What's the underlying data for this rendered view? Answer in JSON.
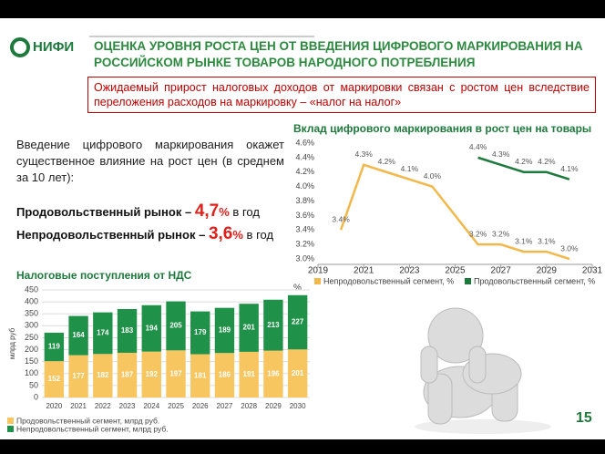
{
  "header": {
    "logo": "НИФИ",
    "title": "ОЦЕНКА УРОВНЯ РОСТА ЦЕН ОТ ВВЕДЕНИЯ ЦИФРОВОГО МАРКИРОВАНИЯ НА РОССИЙСКОМ РЫНКЕ ТОВАРОВ НАРОДНОГО ПОТРЕБЛЕНИЯ"
  },
  "callout": "Ожидаемый прирост налоговых доходов от маркировки связан с ростом цен вследствие переложения расходов на маркировку – «налог на налог»",
  "intro": "Введение цифрового маркирования окажет существенное влияние на рост цен (в среднем за 10 лет):",
  "market_growth": [
    {
      "label": "Продовольственный рынок –",
      "value": "4,7",
      "unit": "%",
      "suffix": "в год"
    },
    {
      "label": "Непродовольственный рынок –",
      "value": "3,6",
      "unit": "%",
      "suffix": "в год"
    }
  ],
  "page_number": "15",
  "chart_data": [
    {
      "type": "line",
      "title": "Вклад цифрового маркирования в рост цен на товары",
      "xlim": [
        2019,
        2031
      ],
      "xticks": [
        2019,
        2021,
        2023,
        2025,
        2027,
        2029,
        2031
      ],
      "ylim": [
        3.0,
        4.6
      ],
      "yticks": [
        {
          "value": 3.0,
          "label": "3.0%"
        },
        {
          "value": 3.2,
          "label": "3.2%"
        },
        {
          "value": 3.4,
          "label": "3.4%"
        },
        {
          "value": 3.6,
          "label": "3.6%"
        },
        {
          "value": 3.8,
          "label": "3.8%"
        },
        {
          "value": 4.0,
          "label": "4.0%"
        },
        {
          "value": 4.2,
          "label": "4.2%"
        },
        {
          "value": 4.4,
          "label": "4.4%"
        },
        {
          "value": 4.6,
          "label": "4.6%"
        }
      ],
      "legend": "bottom",
      "series": [
        {
          "name": "Непродовольственный сегмент, %",
          "color": "#f2b84b",
          "x": [
            2020,
            2021,
            2022,
            2023,
            2024,
            2026,
            2027,
            2028,
            2029,
            2030
          ],
          "values": [
            3.4,
            4.3,
            4.2,
            4.1,
            4.0,
            3.2,
            3.2,
            3.1,
            3.1,
            3.0
          ],
          "value_labels": [
            "3.4%",
            "4.3%",
            "4.2%",
            "4.1%",
            "4.0%",
            "3.2%",
            "3.2%",
            "3.1%",
            "3.1%",
            "3.0%"
          ]
        },
        {
          "name": "Продовольственный сегмент, %",
          "color": "#1e7a3c",
          "x": [
            2026,
            2027,
            2028,
            2029,
            2030
          ],
          "values": [
            4.4,
            4.3,
            4.2,
            4.2,
            4.1
          ],
          "value_labels": [
            "4.4%",
            "4.3%",
            "4.2%",
            "4.2%",
            "4.1%"
          ]
        }
      ]
    },
    {
      "type": "bar",
      "title": "Налоговые поступления от НДС",
      "y_label": "млрд руб",
      "annotation": "%",
      "categories": [
        "2020",
        "2021",
        "2022",
        "2023",
        "2024",
        "2025",
        "2026",
        "2027",
        "2028",
        "2029",
        "2030"
      ],
      "ylim": [
        0,
        450
      ],
      "yticks": [
        0,
        50,
        100,
        150,
        200,
        250,
        300,
        350,
        400,
        450
      ],
      "grid": true,
      "stacked": true,
      "series": [
        {
          "name": "Продовольственный сегмент, млрд руб.",
          "color": "#f8c660",
          "values": [
            152,
            177,
            182,
            187,
            192,
            197,
            181,
            186,
            191,
            196,
            201
          ]
        },
        {
          "name": "Непродовольственный сегмент, млрд руб.",
          "color": "#1f9148",
          "values": [
            119,
            164,
            174,
            183,
            194,
            205,
            179,
            189,
            201,
            213,
            227
          ]
        }
      ]
    }
  ]
}
